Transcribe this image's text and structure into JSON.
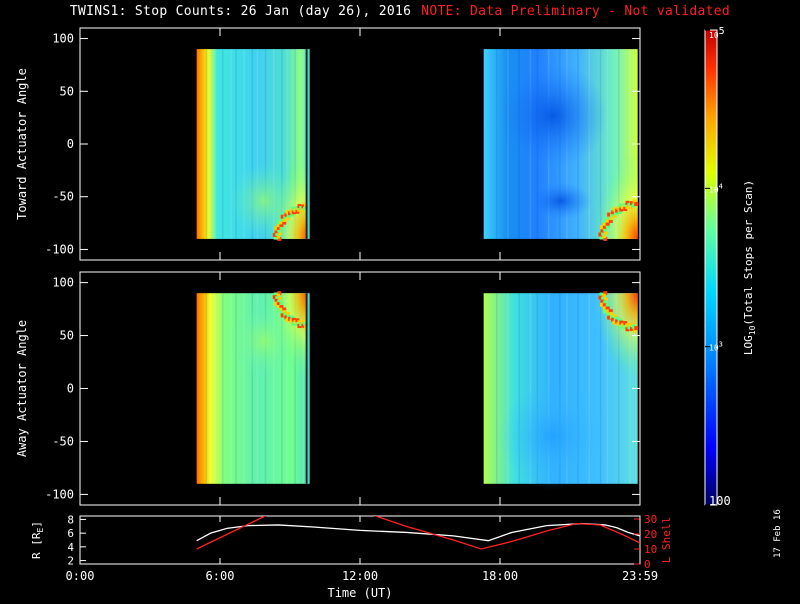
{
  "title": "TWINS1: Stop Counts: 26 Jan (day  26), 2016",
  "note": "NOTE: Data Preliminary - Not validated",
  "date_stamp": "17 Feb 16",
  "colors": {
    "background": "#000000",
    "axes": "#ffffff",
    "note": "#ff2020",
    "lshell": "#ff2020",
    "radius": "#ffffff"
  },
  "chart_data": [
    {
      "type": "heatmap",
      "ylabel": "Toward Actuator Angle",
      "ylim": [
        -110,
        110
      ],
      "yticks": [
        -100,
        -50,
        0,
        50,
        100
      ],
      "xlim": [
        0,
        24
      ],
      "data_intervals_hours": [
        [
          5.0,
          9.8
        ],
        [
          17.3,
          23.9
        ]
      ],
      "data_angle_range": [
        -90,
        90
      ],
      "colorscale": "log"
    },
    {
      "type": "heatmap",
      "ylabel": "Away Actuator Angle",
      "ylim": [
        -110,
        110
      ],
      "yticks": [
        -100,
        -50,
        0,
        50,
        100
      ],
      "xlim": [
        0,
        24
      ],
      "data_intervals_hours": [
        [
          5.0,
          9.8
        ],
        [
          17.3,
          23.9
        ]
      ],
      "data_angle_range": [
        -90,
        90
      ],
      "colorscale": "log"
    },
    {
      "type": "line",
      "xlabel": "Time (UT)",
      "xlim": [
        0,
        24
      ],
      "xticks": [
        0,
        6,
        12,
        18,
        24
      ],
      "xtick_labels": [
        "0:00",
        "6:00",
        "12:00",
        "18:00",
        "23:59"
      ],
      "ylabel_left": "R [R",
      "ylabel_left_sub": "E",
      "ylabel_left_close": "]",
      "ylim_left": [
        1.5,
        8.5
      ],
      "yticks_left": [
        2,
        4,
        6,
        8
      ],
      "ylabel_right": "L Shell",
      "ylim_right": [
        0,
        32
      ],
      "yticks_right": [
        0,
        10,
        20,
        30
      ],
      "series": [
        {
          "axis": "left",
          "color": "#ffffff",
          "x": [
            5.0,
            5.6,
            6.3,
            7.2,
            8.5,
            10.0,
            12.0,
            14.0,
            16.0,
            17.5,
            18.5,
            20.0,
            21.5,
            22.5,
            23.0,
            23.5,
            24.0
          ],
          "y": [
            4.9,
            6.0,
            6.7,
            7.1,
            7.2,
            6.9,
            6.4,
            6.1,
            5.6,
            4.9,
            6.1,
            7.1,
            7.4,
            7.2,
            6.8,
            6.1,
            5.6
          ]
        },
        {
          "axis": "right",
          "color": "#ff2020",
          "segments": [
            {
              "x": [
                5.0,
                5.8,
                6.6,
                7.4,
                8.2
              ],
              "y": [
                10,
                16,
                22,
                28,
                34
              ]
            },
            {
              "x": [
                12.3,
                14.0,
                16.0,
                17.2,
                18.5,
                20.0,
                21.3,
                22.3,
                23.2,
                24.0
              ],
              "y": [
                34,
                25,
                16,
                10,
                15,
                22,
                27,
                26,
                20,
                14
              ]
            }
          ]
        }
      ]
    }
  ],
  "colorbar": {
    "label": "LOG",
    "label_sub": "10",
    "label_rest": "(Total Stops per Scan)",
    "ticks": [
      {
        "label": "10",
        "sup": "5"
      },
      {
        "label": "10",
        "sup": "4"
      },
      {
        "label": "10",
        "sup": "3"
      },
      {
        "label": "100",
        "sup": ""
      }
    ]
  }
}
